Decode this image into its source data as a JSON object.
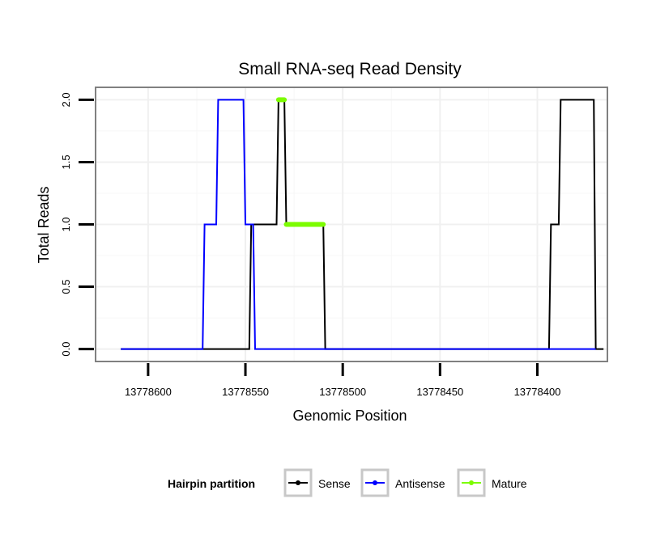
{
  "chart_data": {
    "type": "line",
    "title": "Small RNA-seq Read Density",
    "xlabel": "Genomic Position",
    "ylabel": "Total Reads",
    "xlim": [
      13778627,
      13778364
    ],
    "ylim": [
      -0.1,
      2.1
    ],
    "x_reversed": true,
    "grid": true,
    "x_ticks": [
      13778600,
      13778550,
      13778500,
      13778450,
      13778400
    ],
    "x_tick_labels": [
      "13778600",
      "13778550",
      "13778500",
      "13778450",
      "13778400"
    ],
    "y_ticks": [
      0.0,
      0.5,
      1.0,
      1.5,
      2.0
    ],
    "y_tick_labels": [
      "0.0",
      "0.5",
      "1.0",
      "1.5",
      "2.0"
    ],
    "legend": {
      "title": "Hairpin partition",
      "placement": "bottom",
      "entries": [
        {
          "label": "Sense",
          "color": "#000000"
        },
        {
          "label": "Antisense",
          "color": "#0000ff"
        },
        {
          "label": "Mature",
          "color": "#7cfc00"
        }
      ]
    },
    "series": [
      {
        "name": "Sense",
        "color": "#000000",
        "points": [
          [
            13778614,
            0
          ],
          [
            13778548,
            0
          ],
          [
            13778547,
            1
          ],
          [
            13778534,
            1
          ],
          [
            13778533,
            2
          ],
          [
            13778530,
            2
          ],
          [
            13778529,
            1
          ],
          [
            13778510,
            1
          ],
          [
            13778509,
            0
          ],
          [
            13778394,
            0
          ],
          [
            13778393,
            1
          ],
          [
            13778389,
            1
          ],
          [
            13778388,
            2
          ],
          [
            13778371,
            2
          ],
          [
            13778370,
            0
          ],
          [
            13778366,
            0
          ]
        ]
      },
      {
        "name": "Antisense",
        "color": "#0000ff",
        "points": [
          [
            13778614,
            0
          ],
          [
            13778572,
            0
          ],
          [
            13778571,
            1
          ],
          [
            13778565,
            1
          ],
          [
            13778564,
            2
          ],
          [
            13778551,
            2
          ],
          [
            13778550,
            1
          ],
          [
            13778546,
            1
          ],
          [
            13778545,
            0
          ],
          [
            13778370,
            0
          ]
        ]
      },
      {
        "name": "Mature",
        "color": "#7cfc00",
        "points": [
          [
            13778533,
            2
          ],
          [
            13778530,
            2
          ]
        ]
      },
      {
        "name": "Mature",
        "color": "#7cfc00",
        "points": [
          [
            13778529,
            1
          ],
          [
            13778510,
            1
          ]
        ]
      }
    ]
  }
}
